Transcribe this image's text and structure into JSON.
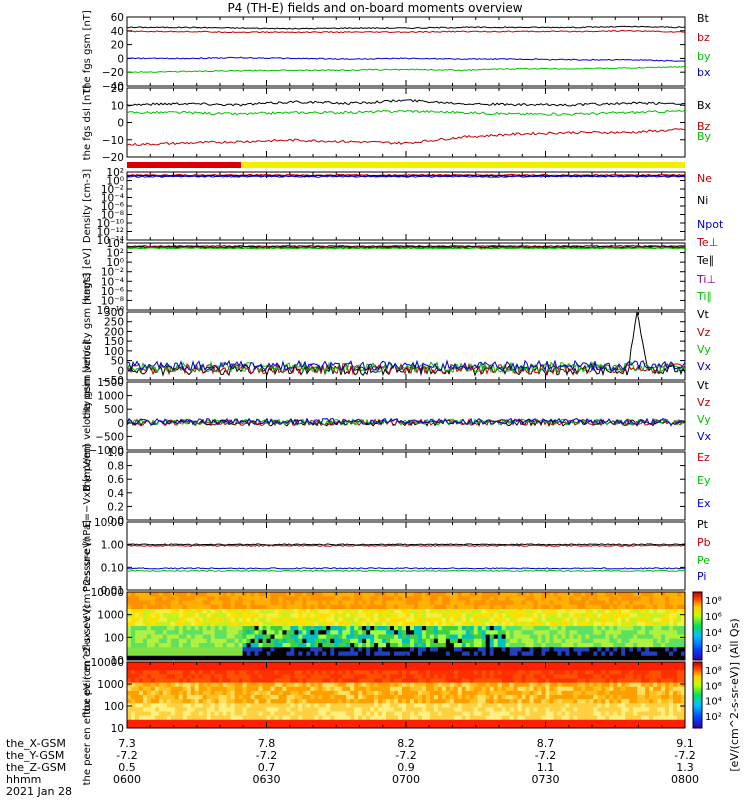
{
  "window": {
    "title": "P4 (TH-E) fields and on-board moments overview"
  },
  "colors": {
    "black": "#000000",
    "red": "#c00000",
    "green": "#00c000",
    "blue": "#0000cc",
    "yellow": "#f0f000",
    "purple": "#7f007f",
    "bar_red": "#dd0000"
  },
  "footer": {
    "rows": [
      {
        "label": "the_X-GSM",
        "values": [
          "7.3",
          "7.8",
          "8.2",
          "8.7",
          "9.1"
        ]
      },
      {
        "label": "the_Y-GSM",
        "values": [
          "-7.2",
          "-7.2",
          "-7.2",
          "-7.2",
          "-7.2"
        ]
      },
      {
        "label": "the_Z-GSM",
        "values": [
          "0.5",
          "0.7",
          "0.9",
          "1.1",
          "1.3"
        ]
      },
      {
        "label": "hhmm",
        "values": [
          "0600",
          "0630",
          "0700",
          "0730",
          "0800"
        ]
      }
    ],
    "date": "2021 Jan 28"
  },
  "chart_data": [
    {
      "type": "line",
      "ylabel": "the fgs gsm [nT]",
      "yticks": [
        "60",
        "40",
        "20",
        "0",
        "−20",
        "−40"
      ],
      "ylim": [
        -40,
        60
      ],
      "series": [
        {
          "name": "Bt",
          "color": "black",
          "values": [
            45,
            45,
            44,
            43,
            44,
            44,
            45,
            45,
            45,
            46,
            45
          ]
        },
        {
          "name": "bz",
          "color": "red",
          "values": [
            39,
            39,
            38,
            38,
            38,
            38,
            39,
            39,
            39,
            40,
            38
          ]
        },
        {
          "name": "by",
          "color": "green",
          "values": [
            -20,
            -19,
            -18,
            -17,
            -17,
            -16,
            -17,
            -15,
            -15,
            -14,
            -12
          ]
        },
        {
          "name": "bx",
          "color": "blue",
          "values": [
            0,
            0,
            1,
            0,
            -1,
            0,
            -1,
            -1,
            -2,
            -2,
            -4
          ]
        }
      ]
    },
    {
      "type": "line",
      "ylabel": "the fgs dsl [nT]",
      "yticks": [
        "20",
        "10",
        "0",
        "−10",
        "−20"
      ],
      "ylim": [
        -25,
        20
      ],
      "series": [
        {
          "name": "Bx",
          "color": "black",
          "values": [
            9,
            10,
            9,
            11,
            10,
            12,
            10,
            9,
            9,
            10,
            10
          ]
        },
        {
          "name": "By",
          "color": "green",
          "values": [
            4,
            4,
            3,
            4,
            4,
            5,
            4,
            3,
            3,
            4,
            5
          ]
        },
        {
          "name": "Bz",
          "color": "red",
          "values": [
            -17,
            -16,
            -15,
            -14,
            -15,
            -16,
            -12,
            -10,
            -9,
            -9,
            -7
          ]
        }
      ]
    },
    {
      "type": "line",
      "ylabel": "Density [cm-3]",
      "yticks": [
        "10²",
        "10⁰",
        "10⁻²",
        "10⁻⁴",
        "10⁻⁶",
        "10⁻⁸",
        "10⁻¹⁰",
        "10⁻¹²",
        "10⁻¹⁴"
      ],
      "series": [
        {
          "name": "Ne",
          "color": "red"
        },
        {
          "name": "Ni",
          "color": "black"
        },
        {
          "name": "Npot",
          "color": "blue"
        }
      ]
    },
    {
      "type": "line",
      "ylabel": "magt3 [eV]",
      "yticks": [
        "10⁴",
        "10²",
        "10⁰",
        "10⁻²",
        "10⁻⁴",
        "10⁻⁶",
        "10⁻⁸",
        "10⁻¹⁰"
      ],
      "series": [
        {
          "name": "Te⊥",
          "color": "red"
        },
        {
          "name": "Te∥",
          "color": "black"
        },
        {
          "name": "Ti⊥",
          "color": "purple"
        },
        {
          "name": "Ti∥",
          "color": "green"
        }
      ]
    },
    {
      "type": "line",
      "ylabel": "the peim velocity gsm [km/s]",
      "yticks": [
        "300",
        "250",
        "200",
        "150",
        "100",
        "50",
        "0",
        "−50"
      ],
      "ylim": [
        -50,
        300
      ],
      "series": [
        {
          "name": "Vt",
          "color": "black"
        },
        {
          "name": "Vz",
          "color": "red"
        },
        {
          "name": "Vy",
          "color": "green"
        },
        {
          "name": "Vx",
          "color": "blue"
        }
      ]
    },
    {
      "type": "line",
      "ylabel": "the peem velocity gsm [km/s]",
      "yticks": [
        "1500",
        "1000",
        "500",
        "0",
        "−500",
        "−1000"
      ],
      "ylim": [
        -1000,
        1500
      ],
      "series": [
        {
          "name": "Vt",
          "color": "black"
        },
        {
          "name": "Vz",
          "color": "red"
        },
        {
          "name": "Vy",
          "color": "green"
        },
        {
          "name": "Vx",
          "color": "blue"
        }
      ]
    },
    {
      "type": "line",
      "ylabel": "E=−VxB [mV/m]",
      "yticks": [
        "1.0",
        "0.8",
        "0.6",
        "0.4",
        "0.2",
        "0.0"
      ],
      "ylim": [
        0,
        1
      ],
      "series": [
        {
          "name": "Ez",
          "color": "red"
        },
        {
          "name": "Ey",
          "color": "green"
        },
        {
          "name": "Ex",
          "color": "blue"
        }
      ]
    },
    {
      "type": "line",
      "ylabel": "Pressure [nPa]",
      "yticks": [
        "10.00",
        "1.00",
        "0.10",
        "0.01"
      ],
      "series": [
        {
          "name": "Pt",
          "color": "black"
        },
        {
          "name": "Pb",
          "color": "red"
        },
        {
          "name": "Pe",
          "color": "green"
        },
        {
          "name": "Pi",
          "color": "blue"
        }
      ]
    },
    {
      "type": "heatmap",
      "ylabel": "the peir en eflux eV (cm^2-s-sr-eV)",
      "yticks": [
        "10000",
        "1000",
        "100",
        "10"
      ],
      "colorbar": [
        "10⁸",
        "10⁶",
        "10⁴",
        "10²"
      ]
    },
    {
      "type": "heatmap",
      "ylabel": "the peer en eflux eV (cm^2-s-sr-eV)",
      "yticks": [
        "10000",
        "1000",
        "100",
        "10"
      ],
      "colorbar": [
        "10⁸",
        "10⁶",
        "10⁴",
        "10²"
      ]
    }
  ],
  "colorbar_label": "[eV/(cm^2-s-sr-eV)] (All Qs)"
}
